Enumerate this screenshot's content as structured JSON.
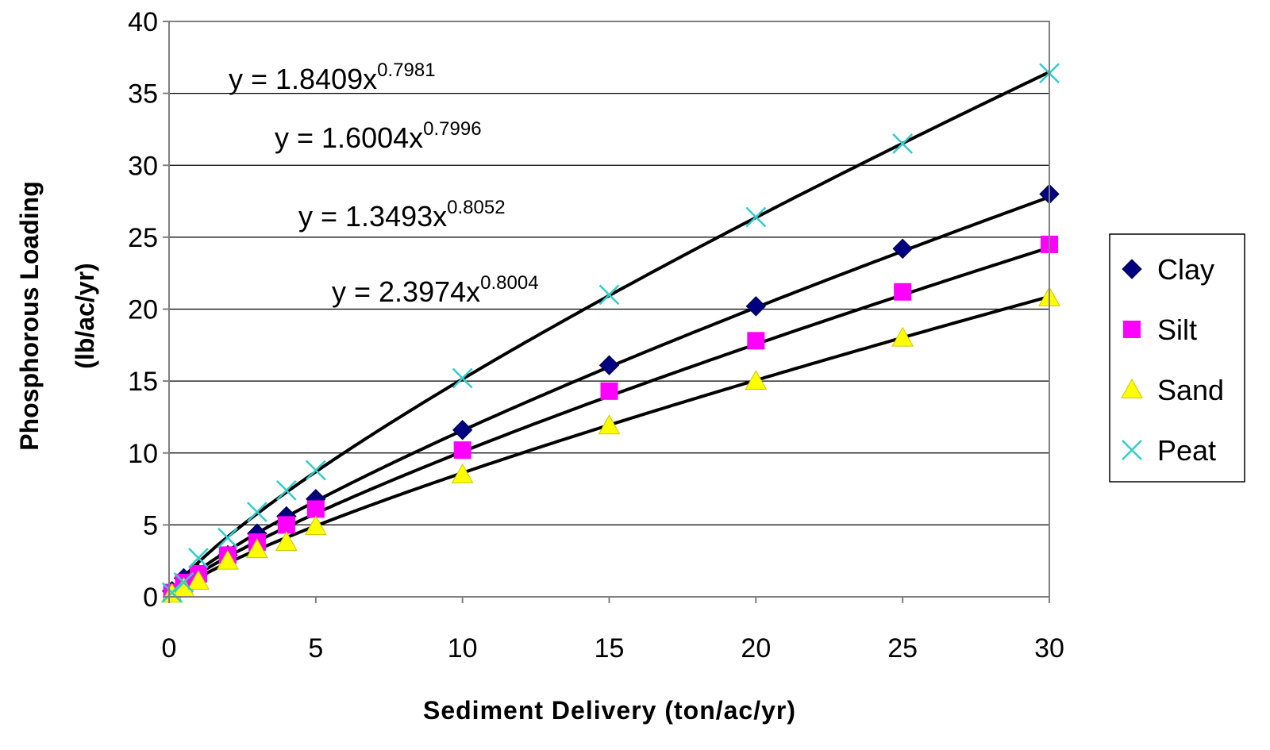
{
  "chart_data": {
    "type": "scatter",
    "xlabel": "Sediment Delivery (ton/ac/yr)",
    "ylabel_line1": "Phosphorous Loading",
    "ylabel_line2": "(lb/ac/yr)",
    "xlim": [
      0,
      30
    ],
    "ylim": [
      0,
      40
    ],
    "xticks": [
      0,
      5,
      10,
      15,
      20,
      25,
      30
    ],
    "yticks": [
      0,
      5,
      10,
      15,
      20,
      25,
      30,
      35,
      40
    ],
    "grid": "horizontal",
    "legend_position": "right",
    "x": [
      0.1,
      0.5,
      1,
      2,
      3,
      4,
      5,
      10,
      15,
      20,
      25,
      30
    ],
    "series": [
      {
        "name": "Clay",
        "marker": "diamond",
        "color": "#000080",
        "values": [
          0.4,
          1.3,
          1.6,
          2.9,
          4.4,
          5.6,
          6.8,
          11.6,
          16.1,
          20.2,
          24.2,
          28.0
        ]
      },
      {
        "name": "Silt",
        "marker": "square",
        "color": "#ff00ff",
        "values": [
          0.3,
          1.0,
          1.6,
          2.9,
          3.8,
          5.0,
          6.1,
          10.2,
          14.3,
          17.8,
          21.2,
          24.5
        ]
      },
      {
        "name": "Sand",
        "marker": "triangle",
        "color": "#ffff00",
        "values": [
          0.2,
          0.6,
          1.1,
          2.5,
          3.3,
          3.8,
          4.9,
          8.5,
          11.9,
          15.0,
          18.0,
          20.8
        ]
      },
      {
        "name": "Peat",
        "marker": "x",
        "color": "#33cccc",
        "values": [
          0.3,
          1.0,
          2.7,
          4.1,
          5.9,
          7.4,
          8.8,
          15.2,
          21.0,
          26.4,
          31.5,
          36.4
        ]
      }
    ],
    "trendlines": [
      {
        "coef": 2.3974,
        "exp": 0.8004,
        "base": "y = 2.3974x",
        "sup": "0.8004"
      },
      {
        "coef": 1.8409,
        "exp": 0.7981,
        "base": "y = 1.8409x",
        "sup": "0.7981"
      },
      {
        "coef": 1.6004,
        "exp": 0.7996,
        "base": "y = 1.6004x",
        "sup": "0.7996"
      },
      {
        "coef": 1.3493,
        "exp": 0.8052,
        "base": "y = 1.3493x",
        "sup": "0.8052"
      }
    ]
  }
}
